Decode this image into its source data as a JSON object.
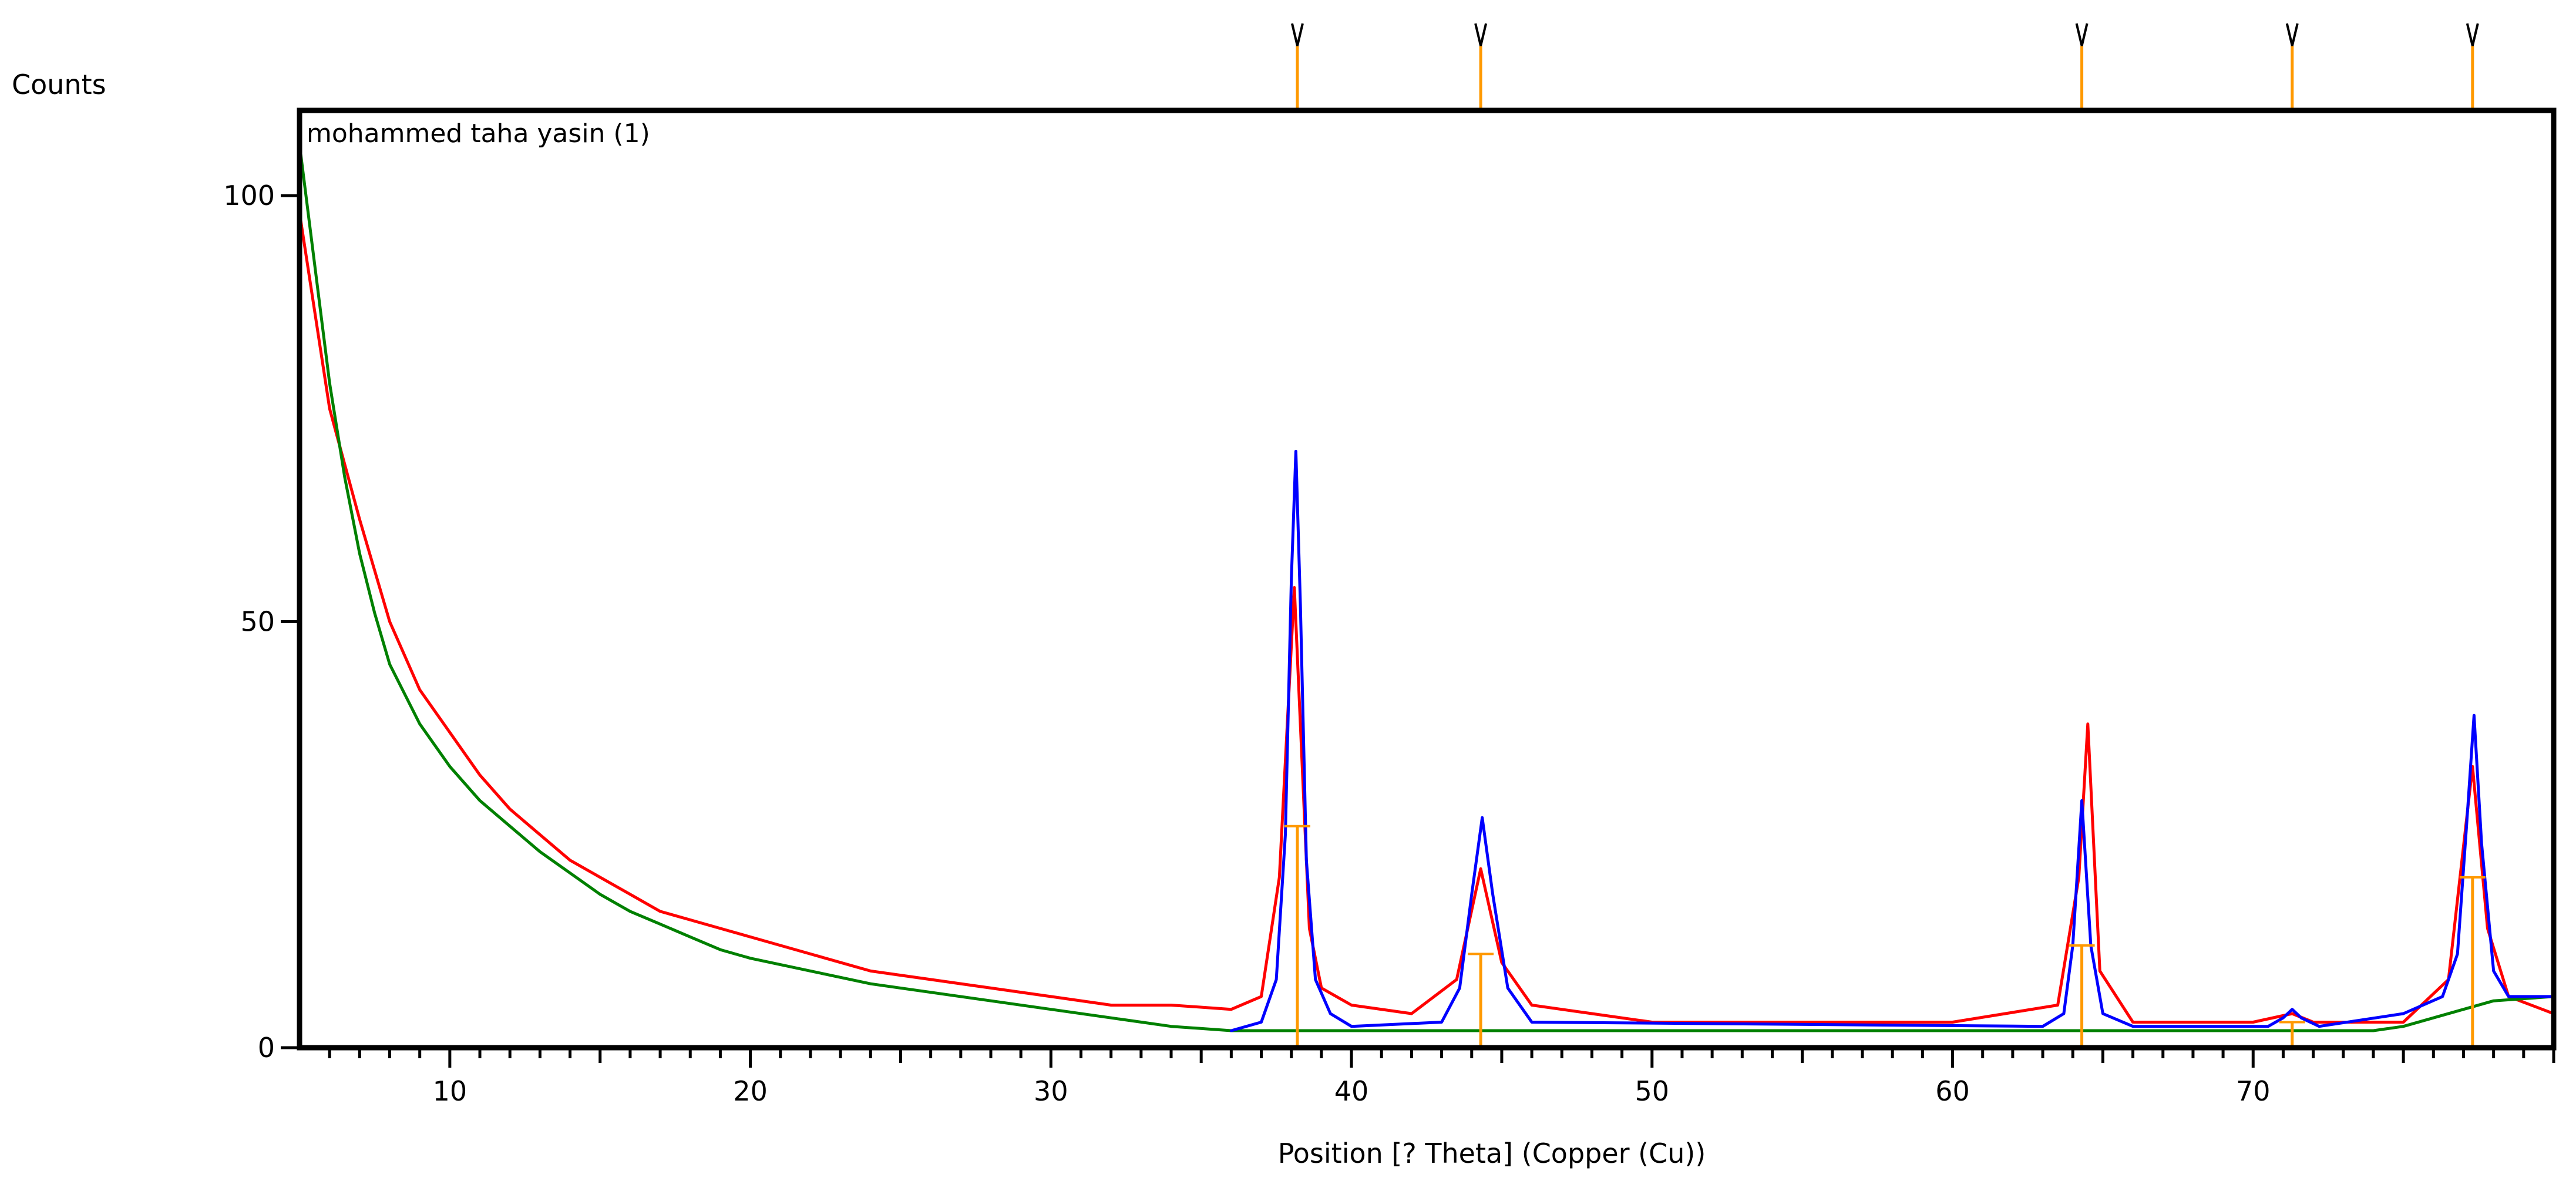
{
  "chart_data": {
    "type": "line",
    "title": "mohammed taha yasin (1)",
    "xlabel": "Position [?  Theta] (Copper (Cu))",
    "ylabel": "Counts",
    "xlim": [
      5,
      80
    ],
    "ylim": [
      0,
      110
    ],
    "x_ticks": [
      10,
      20,
      30,
      40,
      50,
      60,
      70
    ],
    "y_ticks": [
      0,
      50,
      100
    ],
    "grid": false,
    "series": [
      {
        "key": "observed",
        "color": "#ff0000",
        "x": [
          5,
          6,
          7,
          8,
          9,
          10,
          11,
          12,
          13,
          14,
          15,
          16,
          17,
          18,
          19,
          20,
          22,
          24,
          26,
          28,
          30,
          32,
          34,
          36,
          37,
          37.6,
          38.1,
          38.6,
          39,
          40,
          42,
          43.5,
          44.3,
          45,
          46,
          48,
          50,
          55,
          60,
          63.5,
          64.2,
          64.5,
          64.9,
          66,
          70,
          71.3,
          72,
          75,
          76.5,
          77.3,
          77.8,
          78.5,
          80
        ],
        "y": [
          98,
          75,
          62,
          50,
          42,
          37,
          32,
          28,
          25,
          22,
          20,
          18,
          16,
          15,
          14,
          13,
          11,
          9,
          8,
          7,
          6,
          5,
          5,
          4.5,
          6,
          20,
          54,
          14,
          7,
          5,
          4,
          8,
          21,
          10,
          5,
          4,
          3,
          3,
          3,
          5,
          20,
          38,
          9,
          3,
          3,
          4,
          3,
          3,
          8,
          33,
          14,
          6,
          4
        ]
      },
      {
        "key": "calculated",
        "color": "#0000ff",
        "x": [
          36,
          37,
          37.5,
          37.8,
          38.0,
          38.15,
          38.3,
          38.5,
          38.8,
          39.3,
          40,
          43,
          43.6,
          44.0,
          44.35,
          44.7,
          45.2,
          46,
          63,
          63.7,
          64.0,
          64.3,
          64.6,
          65.0,
          66,
          70.5,
          71.0,
          71.3,
          71.6,
          72.2,
          75,
          76.3,
          76.8,
          77.1,
          77.35,
          77.6,
          78.0,
          78.5,
          80
        ],
        "y": [
          2,
          3,
          8,
          25,
          55,
          70,
          52,
          22,
          8,
          4,
          2.5,
          3,
          7,
          18,
          27,
          18,
          7,
          3,
          2.5,
          4,
          12,
          29,
          12,
          4,
          2.5,
          2.5,
          3.5,
          4.5,
          3.5,
          2.5,
          4,
          6,
          11,
          26,
          39,
          24,
          9,
          6,
          6
        ]
      },
      {
        "key": "background",
        "color": "#008000",
        "x": [
          5,
          5.5,
          6,
          6.5,
          7,
          7.5,
          8,
          9,
          10,
          11,
          12,
          13,
          14,
          15,
          16,
          17,
          18,
          19,
          20,
          22,
          24,
          26,
          28,
          30,
          32,
          34,
          36,
          40,
          50,
          60,
          70,
          74,
          75,
          76,
          77,
          78,
          80
        ],
        "y": [
          106,
          92,
          78,
          67,
          58,
          51,
          45,
          38,
          33,
          29,
          26,
          23,
          20.5,
          18,
          16,
          14.5,
          13,
          11.5,
          10.5,
          9,
          7.5,
          6.5,
          5.5,
          4.5,
          3.5,
          2.5,
          2,
          2,
          2,
          2,
          2,
          2,
          2.5,
          3.5,
          4.5,
          5.5,
          6
        ]
      }
    ],
    "reference_peaks": {
      "color": "#ff9900",
      "x": [
        38.2,
        44.3,
        64.3,
        71.3,
        77.3
      ],
      "y": [
        26,
        11,
        12,
        3,
        20
      ]
    }
  }
}
